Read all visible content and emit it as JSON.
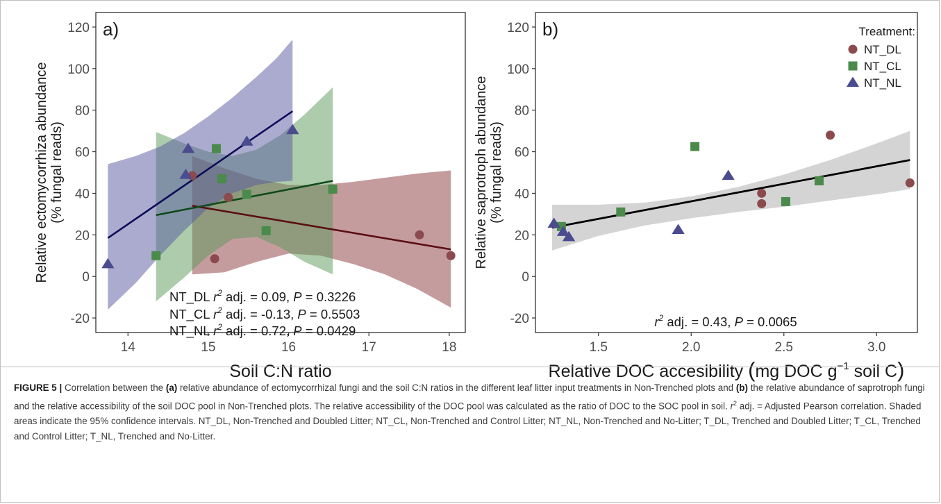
{
  "chart_data": [
    {
      "id": "a",
      "type": "scatter",
      "panel_label": "a)",
      "xlabel": "Soil C:N ratio",
      "ylabel_line1": "Relative ectomycorrhiza abundance",
      "ylabel_line2": "(% fungal reads)",
      "xlim": [
        13.6,
        18.2
      ],
      "ylim": [
        -27,
        127
      ],
      "xticks": [
        14,
        15,
        16,
        17,
        18
      ],
      "yticks": [
        -20,
        0,
        20,
        40,
        60,
        80,
        100,
        120
      ],
      "grid": false,
      "series": [
        {
          "name": "NT_DL",
          "marker": "circle",
          "color": "#8b4a4d",
          "line_color": "#5a0e12",
          "band_color": "#8b3a3e",
          "points": [
            [
              14.8,
              48.5
            ],
            [
              15.08,
              8.5
            ],
            [
              15.25,
              38
            ],
            [
              17.63,
              20
            ],
            [
              18.02,
              10
            ]
          ],
          "fit": [
            [
              14.8,
              34
            ],
            [
              18.02,
              13
            ]
          ],
          "band": {
            "x": [
              14.8,
              15.2,
              15.6,
              16.0,
              16.4,
              16.8,
              17.2,
              17.6,
              18.02
            ],
            "upper": [
              58,
              52,
              47,
              44,
              44,
              45.5,
              47.5,
              49.5,
              51
            ],
            "lower": [
              1,
              2,
              7,
              11,
              10,
              6,
              1,
              -6,
              -15
            ]
          }
        },
        {
          "name": "NT_CL",
          "marker": "square",
          "color": "#4a8a4a",
          "line_color": "#0f4a1a",
          "band_color": "#5a9a5a",
          "points": [
            [
              14.35,
              10
            ],
            [
              15.1,
              61.5
            ],
            [
              15.17,
              47
            ],
            [
              15.48,
              39.5
            ],
            [
              15.72,
              22
            ],
            [
              16.55,
              42
            ]
          ],
          "fit": [
            [
              14.35,
              29.5
            ],
            [
              16.55,
              46
            ]
          ],
          "band": {
            "x": [
              14.35,
              14.7,
              15.0,
              15.3,
              15.6,
              15.9,
              16.2,
              16.55
            ],
            "upper": [
              69.5,
              64,
              60,
              58,
              61,
              68,
              78,
              91
            ],
            "lower": [
              -12,
              -0.5,
              10,
              18,
              19,
              14,
              7,
              1
            ]
          }
        },
        {
          "name": "NT_NL",
          "marker": "triangle",
          "color": "#4b4b8f",
          "line_color": "#0d0d5a",
          "band_color": "#5858a0",
          "points": [
            [
              13.75,
              6
            ],
            [
              14.72,
              49
            ],
            [
              14.75,
              61.5
            ],
            [
              15.48,
              65
            ],
            [
              16.05,
              70.5
            ]
          ],
          "fit": [
            [
              13.75,
              18.5
            ],
            [
              16.05,
              79.5
            ]
          ],
          "band": {
            "x": [
              13.75,
              14.1,
              14.4,
              14.7,
              15.0,
              15.3,
              15.6,
              15.85,
              16.05
            ],
            "upper": [
              54,
              58,
              62.5,
              69,
              77,
              86,
              96,
              105,
              114
            ],
            "lower": [
              -16,
              -3,
              10,
              22,
              33,
              40,
              44,
              45.5,
              46
            ]
          }
        }
      ],
      "annotations": [
        {
          "prefix": "NT_DL",
          "r2": "0.09",
          "p": "0.3226"
        },
        {
          "prefix": "NT_CL",
          "r2": "-0.13",
          "p": "0.5503"
        },
        {
          "prefix": "NT_NL",
          "r2": "0.72",
          "p": "0.0429"
        }
      ]
    },
    {
      "id": "b",
      "type": "scatter",
      "panel_label": "b)",
      "xlabel_main": "Relative DOC accesibility",
      "xlabel_unit_a": "mg DOC g",
      "xlabel_unit_sup": "−1",
      "xlabel_unit_b": " soil C",
      "ylabel_line1": "Relative saprotroph abundance",
      "ylabel_line2": "(% fungal reads)",
      "xlim": [
        1.16,
        3.22
      ],
      "ylim": [
        -27,
        127
      ],
      "xticks": [
        1.5,
        2.0,
        2.5,
        3.0
      ],
      "xtick_labels": [
        "1.5",
        "2.0",
        "2.5",
        "3.0"
      ],
      "yticks": [
        -20,
        0,
        20,
        40,
        60,
        80,
        100,
        120
      ],
      "grid": false,
      "series": [
        {
          "name": "NT_DL",
          "marker": "circle",
          "color": "#8b4a4d",
          "points": [
            [
              2.38,
              40
            ],
            [
              2.38,
              35
            ],
            [
              2.75,
              68
            ],
            [
              3.18,
              45
            ]
          ]
        },
        {
          "name": "NT_CL",
          "marker": "square",
          "color": "#4a8a4a",
          "points": [
            [
              1.3,
              24
            ],
            [
              1.62,
              31
            ],
            [
              2.02,
              62.5
            ],
            [
              2.51,
              36
            ],
            [
              2.69,
              46
            ]
          ]
        },
        {
          "name": "NT_NL",
          "marker": "triangle",
          "color": "#4b4b8f",
          "points": [
            [
              1.26,
              25.5
            ],
            [
              1.31,
              21.5
            ],
            [
              1.34,
              19
            ],
            [
              1.93,
              22.5
            ],
            [
              2.2,
              48.5
            ]
          ]
        }
      ],
      "fit": {
        "line_color": "#000000",
        "band_color": "#cfcfcf",
        "line": [
          [
            1.25,
            23.5
          ],
          [
            3.18,
            56
          ]
        ],
        "band": {
          "x": [
            1.25,
            1.5,
            1.75,
            2.0,
            2.25,
            2.5,
            2.75,
            3.0,
            3.18
          ],
          "upper": [
            34.5,
            34.5,
            35.5,
            38.5,
            43,
            49,
            56,
            64,
            70
          ],
          "lower": [
            12.5,
            19.5,
            24.5,
            28,
            31,
            33.5,
            36.5,
            39.5,
            42
          ]
        }
      },
      "annotation": {
        "r2": "0.43",
        "p": "0.0065"
      },
      "legend": {
        "title": "Treatment:",
        "position": "top-right",
        "items": [
          {
            "label": "NT_DL",
            "marker": "circle",
            "color": "#8b4a4d"
          },
          {
            "label": "NT_CL",
            "marker": "square",
            "color": "#4a8a4a"
          },
          {
            "label": "NT_NL",
            "marker": "triangle",
            "color": "#4b4b8f"
          }
        ]
      }
    }
  ],
  "caption": {
    "label": "FIGURE 5 |",
    "t1": " Correlation between the ",
    "b1": "(a)",
    "t2": " relative abundance of ectomycorrhizal fungi and the soil C:N ratios in the different leaf litter input treatments in Non-Trenched plots and ",
    "b2": "(b)",
    "t3": " the relative abundance of saprotroph fungi and the relative accessibility of the soil DOC pool in Non-Trenched plots. The relative accessibility of the DOC pool was calculated as the ratio of DOC to the SOC pool in soil. ",
    "r2_sym": "r",
    "r2_sup": "2",
    "t4": " adj. = Adjusted Pearson correlation. Shaded areas indicate the 95% confidence intervals. NT_DL, Non-Trenched and Doubled Litter; NT_CL, Non-Trenched and Control Litter; NT_NL, Non-Trenched and No-Litter; T_DL, Trenched and Doubled Litter; T_CL, Trenched and Control Litter; T_NL, Trenched and No-Litter."
  }
}
